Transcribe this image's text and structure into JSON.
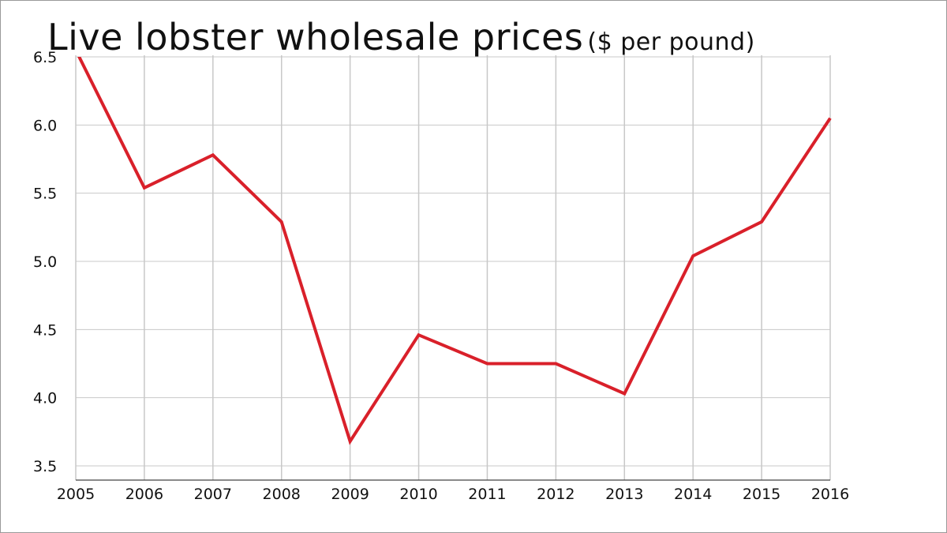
{
  "chart_data": {
    "type": "line",
    "title": "Live lobster wholesale prices",
    "subtitle": "($ per pound)",
    "xlabel": "",
    "ylabel": "",
    "x": [
      "2005",
      "2006",
      "2007",
      "2008",
      "2009",
      "2010",
      "2011",
      "2012",
      "2013",
      "2014",
      "2015",
      "2016"
    ],
    "series": [
      {
        "values": [
          6.55,
          5.54,
          5.78,
          5.29,
          3.68,
          4.46,
          4.25,
          4.25,
          4.03,
          5.04,
          5.29,
          6.05
        ]
      }
    ],
    "ylim": [
      3.5,
      6.5
    ],
    "yticks": [
      "6.5",
      "6.0",
      "5.5",
      "5.0",
      "4.5",
      "4.0",
      "3.5"
    ],
    "grid": true,
    "legend": "none",
    "colors": {
      "line": "#d9202a",
      "grid": "#c8c8c8",
      "axis": "#444444",
      "text": "#111111"
    }
  }
}
